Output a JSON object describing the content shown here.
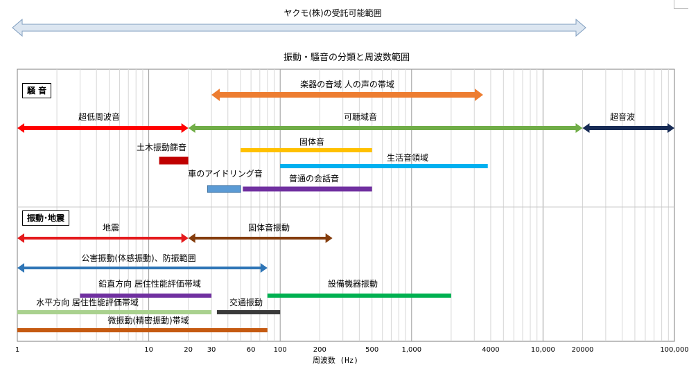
{
  "range_banner": {
    "label": "ヤクモ(株)の受託可能範囲",
    "color": "#dce6f1",
    "stroke": "#7f9dbf",
    "x_start_hz": 0.97,
    "x_end_hz": 21000
  },
  "chart_data": {
    "type": "bar",
    "title": "振動・騒音の分類と周波数範囲",
    "xlabel": "周波数 (Hz)",
    "x_scale": "log",
    "xlim": [
      1,
      100000
    ],
    "xticks": [
      {
        "value": 1,
        "label": "1"
      },
      {
        "value": 10,
        "label": "10"
      },
      {
        "value": 20,
        "label": "20"
      },
      {
        "value": 30,
        "label": "30"
      },
      {
        "value": 60,
        "label": "60"
      },
      {
        "value": 100,
        "label": "100"
      },
      {
        "value": 200,
        "label": "200"
      },
      {
        "value": 500,
        "label": "500"
      },
      {
        "value": 1000,
        "label": "1,000"
      },
      {
        "value": 4000,
        "label": "4000"
      },
      {
        "value": 10000,
        "label": "10,000"
      },
      {
        "value": 20000,
        "label": "20000"
      },
      {
        "value": 100000,
        "label": "100,000"
      }
    ],
    "grid": true,
    "sections": [
      {
        "label": "騒 音"
      },
      {
        "label": "振動･地震"
      }
    ],
    "bars": [
      {
        "label": "楽器の音域 人の声の帯域",
        "start": 30,
        "end": 3500,
        "color": "#ed7d31",
        "style": "arrow"
      },
      {
        "label": "超低周波音",
        "start": 1,
        "end": 20,
        "color": "#ff0000",
        "style": "arrow"
      },
      {
        "label": "可聴域音",
        "start": 20,
        "end": 20000,
        "color": "#70ad47",
        "style": "arrow"
      },
      {
        "label": "超音波",
        "start": 20000,
        "end": 100000,
        "color": "#172b55",
        "style": "arrow"
      },
      {
        "label": "固体音",
        "start": 50,
        "end": 500,
        "color": "#ffc000",
        "style": "bar"
      },
      {
        "label": "土木振動篩音",
        "start": 12,
        "end": 20,
        "color": "#c00000",
        "style": "bar"
      },
      {
        "label": "生活音領域",
        "start": 100,
        "end": 3800,
        "color": "#00b0f0",
        "style": "bar"
      },
      {
        "label": "車のアイドリング音",
        "start": 28,
        "end": 50,
        "color": "#5b9bd5",
        "style": "box"
      },
      {
        "label": "普通の会話音",
        "start": 52,
        "end": 500,
        "color": "#7030a0",
        "style": "bar"
      },
      {
        "label": "地震",
        "start": 1,
        "end": 20,
        "color": "#e41a1c",
        "style": "arrow"
      },
      {
        "label": "固体音振動",
        "start": 20,
        "end": 250,
        "color": "#843c0c",
        "style": "arrow"
      },
      {
        "label": "公害振動(体感振動)、防振範囲",
        "start": 1,
        "end": 80,
        "color": "#2e75b6",
        "style": "arrow"
      },
      {
        "label": "鉛直方向 居住性能評価帯域",
        "start": 3,
        "end": 30,
        "color": "#7030a0",
        "style": "bar"
      },
      {
        "label": "設備機器振動",
        "start": 80,
        "end": 2000,
        "color": "#00b050",
        "style": "bar"
      },
      {
        "label": "水平方向 居住性能評価帯域",
        "start": 1,
        "end": 30,
        "color": "#a9d18e",
        "style": "bar"
      },
      {
        "label": "交通振動",
        "start": 33,
        "end": 100,
        "color": "#3a3a3a",
        "style": "bar"
      },
      {
        "label": "微振動(精密振動)帯域",
        "start": 1,
        "end": 80,
        "color": "#c55a11",
        "style": "bar"
      }
    ]
  }
}
